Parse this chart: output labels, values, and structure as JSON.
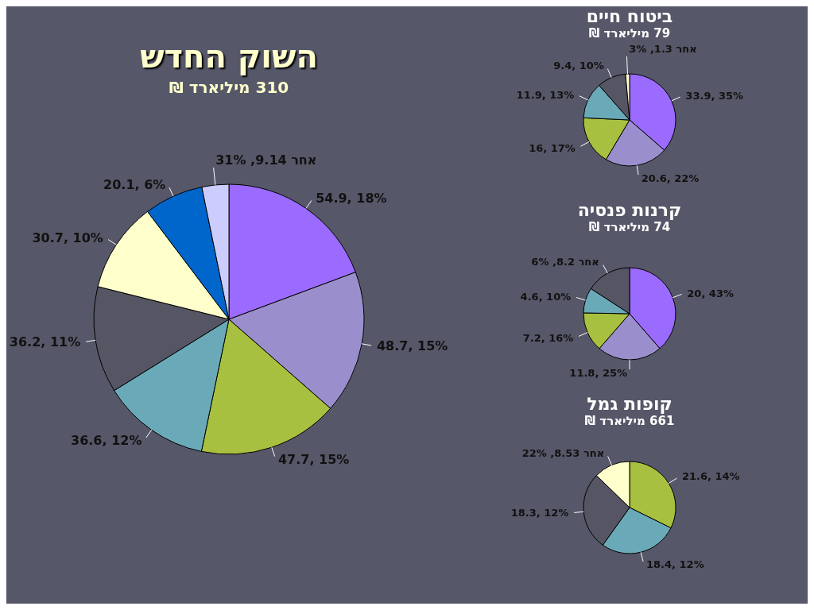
{
  "chart_data": [
    {
      "type": "pie",
      "title": "השוק החדש",
      "subtitle": "310 מיליארד ₪",
      "categories": [
        null,
        null,
        null,
        null,
        null,
        null,
        null,
        "אחר"
      ],
      "values": [
        54.9,
        48.7,
        47.7,
        36.6,
        36.2,
        30.7,
        20.1,
        9.14
      ],
      "value_labels": [
        "54.9, 18%",
        "48.7, 15%",
        "47.7, 15%",
        "36.6, 12%",
        "36.2, 11%",
        "30.7, 10%",
        "20.1, 6%",
        "9.14, 31%"
      ],
      "colors": [
        "#9b6bff",
        "#9a8fcc",
        "#a8c040",
        "#6aaab8",
        "#555564",
        "#ffffcc",
        "#0066cc",
        "#ccccff"
      ]
    },
    {
      "type": "pie",
      "title": "ביטוח חיים",
      "subtitle": "79 מיליארד ₪",
      "categories": [
        null,
        null,
        null,
        null,
        null,
        "אחר"
      ],
      "values": [
        33.9,
        20.6,
        16,
        11.9,
        9.4,
        1.3
      ],
      "value_labels": [
        "33.9, 35%",
        "20.6, 22%",
        "16, 17%",
        "11.9, 13%",
        "9.4, 10%",
        "1.3, 3%"
      ],
      "colors": [
        "#9b6bff",
        "#9a8fcc",
        "#a8c040",
        "#6aaab8",
        "#555564",
        "#ffffcc"
      ]
    },
    {
      "type": "pie",
      "title": "קרנות פנסיה",
      "subtitle": "74 מיליארד ₪",
      "categories": [
        null,
        null,
        null,
        null,
        "אחר"
      ],
      "values": [
        20,
        11.8,
        7.2,
        4.6,
        8.2
      ],
      "value_labels": [
        "20, 43%",
        "11.8, 25%",
        "7.2, 16%",
        "4.6, 10%",
        "8.2, 6%"
      ],
      "colors": [
        "#9b6bff",
        "#9a8fcc",
        "#a8c040",
        "#6aaab8",
        "#555564"
      ]
    },
    {
      "type": "pie",
      "title": "קופות גמל",
      "subtitle": "661 מיליארד ₪",
      "categories": [
        null,
        null,
        null,
        "אחר"
      ],
      "values": [
        21.6,
        18.4,
        18.3,
        8.53
      ],
      "value_labels": [
        "21.6, 14%",
        "18.4, 12%",
        "18.3, 12%",
        "8.53, 22%"
      ],
      "colors": [
        "#a8c040",
        "#6aaab8",
        "#555564",
        "#ffffcc"
      ]
    }
  ]
}
